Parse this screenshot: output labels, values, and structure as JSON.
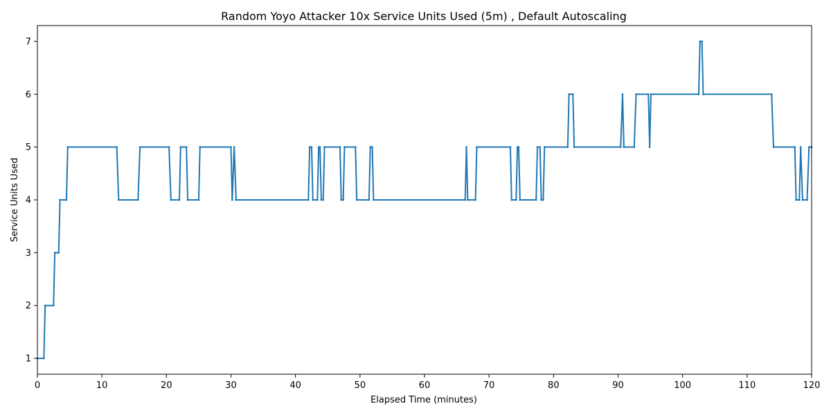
{
  "chart_data": {
    "type": "line",
    "title": "Random Yoyo Attacker 10x Service Units Used (5m) , Default Autoscaling",
    "xlabel": "Elapsed Time (minutes)",
    "ylabel": "Service Units Used",
    "xlim": [
      0,
      120
    ],
    "ylim": [
      0.7,
      7.3
    ],
    "xticks": [
      0,
      10,
      20,
      30,
      40,
      50,
      60,
      70,
      80,
      90,
      100,
      110,
      120
    ],
    "yticks": [
      1,
      2,
      3,
      4,
      5,
      6,
      7
    ],
    "grid": false,
    "legend": "none",
    "color": "#1f77b4",
    "series": [
      {
        "x": [
          0,
          1.0,
          1.2,
          2.5,
          2.7,
          3.3,
          3.5,
          4.5,
          4.7,
          12.3,
          12.6,
          15.6,
          15.9,
          20.4,
          20.7,
          22.0,
          22.2,
          23.1,
          23.3,
          25.0,
          25.2,
          30.0,
          30.2,
          30.5,
          30.8,
          42.0,
          42.2,
          42.5,
          42.7,
          43.4,
          43.6,
          43.8,
          44.0,
          44.3,
          44.5,
          46.9,
          47.1,
          47.4,
          47.6,
          49.3,
          49.5,
          51.4,
          51.6,
          51.9,
          52.1,
          66.3,
          66.5,
          66.7,
          67.9,
          68.1,
          73.3,
          73.5,
          74.2,
          74.4,
          74.6,
          74.8,
          77.3,
          77.5,
          77.9,
          78.1,
          78.4,
          78.6,
          82.2,
          82.4,
          83.0,
          83.2,
          90.4,
          90.7,
          90.9,
          92.5,
          92.8,
          94.7,
          94.9,
          95.1,
          102.5,
          102.7,
          103.0,
          103.2,
          113.8,
          114.1,
          117.4,
          117.6,
          118.1,
          118.3,
          118.6,
          119.3,
          119.6,
          120
        ],
        "y": [
          1,
          1,
          2,
          2,
          3,
          3,
          4,
          4,
          5,
          5,
          4,
          4,
          5,
          5,
          4,
          4,
          5,
          5,
          4,
          4,
          5,
          5,
          4,
          5,
          4,
          4,
          5,
          5,
          4,
          4,
          5,
          5,
          4,
          4,
          5,
          5,
          4,
          4,
          5,
          5,
          4,
          4,
          5,
          5,
          4,
          4,
          5,
          4,
          4,
          5,
          5,
          4,
          4,
          5,
          5,
          4,
          4,
          5,
          5,
          4,
          4,
          5,
          5,
          6,
          6,
          5,
          5,
          6,
          5,
          5,
          6,
          6,
          5,
          6,
          6,
          7,
          7,
          6,
          6,
          5,
          5,
          4,
          4,
          5,
          4,
          4,
          5,
          5
        ]
      }
    ]
  }
}
